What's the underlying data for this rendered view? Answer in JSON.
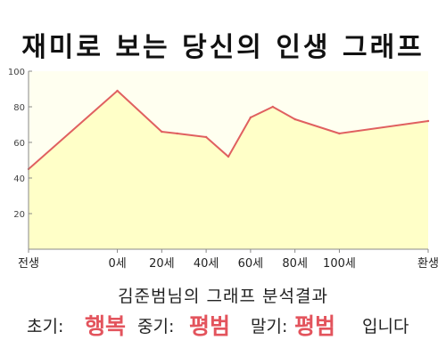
{
  "title": "재미로 보는 당신의 인생 그래프",
  "chart_data": {
    "type": "area",
    "x_tick_labels": [
      "전생",
      "0세",
      "20세",
      "40세",
      "60세",
      "80세",
      "100세",
      "환생"
    ],
    "yticks": [
      20,
      40,
      60,
      80,
      100
    ],
    "ylim": [
      0,
      100
    ],
    "points": [
      {
        "x": "전생",
        "y": 45
      },
      {
        "x": "0세",
        "y": 89
      },
      {
        "x": "20세",
        "y": 66
      },
      {
        "x": "27세",
        "y": 65
      },
      {
        "x": "40세",
        "y": 63
      },
      {
        "x": "50세",
        "y": 52
      },
      {
        "x": "60세",
        "y": 74
      },
      {
        "x": "70세",
        "y": 80
      },
      {
        "x": "80세",
        "y": 73
      },
      {
        "x": "100세",
        "y": 65
      },
      {
        "x": "환생",
        "y": 72
      }
    ],
    "colors": {
      "line": "#e06060",
      "fill": "#ffffc8",
      "plot_bg": "#fffff0",
      "axis": "#888888"
    },
    "grid": false
  },
  "result": {
    "heading": "김준범님의 그래프 분석결과",
    "early_label": "초기:",
    "early_value": "행복",
    "middle_label": "중기:",
    "middle_value": "평범",
    "late_label": "말기:",
    "late_value": "평범",
    "suffix": "입니다"
  }
}
